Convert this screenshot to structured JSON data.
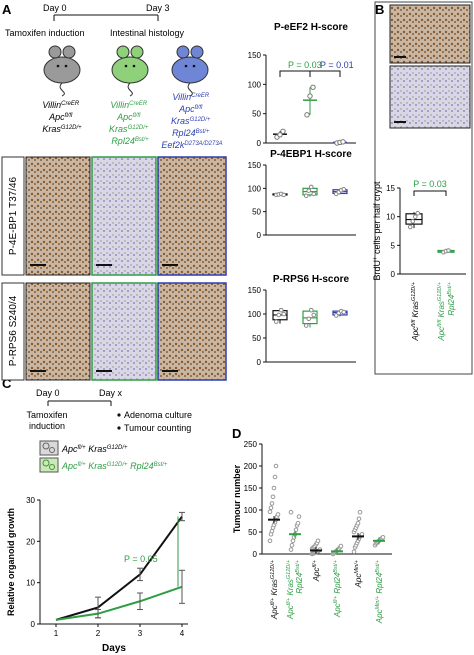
{
  "panel_labels": {
    "a": "A",
    "b": "B",
    "c": "C",
    "d": "D"
  },
  "timeline_a": {
    "day0": "Day 0",
    "day3": "Day 3",
    "left_label": "Tamoxifen induction",
    "right_label": "Intestinal histology"
  },
  "genotypes_a": {
    "g1": [
      "Villin",
      "CreER",
      "Apc",
      "fl/fl",
      "Kras",
      "G12D/+"
    ],
    "g2": [
      "Villin",
      "CreER",
      "Apc",
      "fl/fl",
      "Kras",
      "G12D/+",
      "Rpl24",
      "Bst/+"
    ],
    "g3": [
      "Villin",
      "CreER",
      "Apc",
      "fl/fl",
      "Kras",
      "G12D/+",
      "Rpl24",
      "Bst/+",
      "Eef2k",
      "D273A/D273A"
    ]
  },
  "stain_labels": {
    "row1": "P-4E-BP1 T37/46",
    "row2": "P-RPS6 S240/4"
  },
  "colors": {
    "black": "#111111",
    "green": "#2e9e44",
    "blue": "#2d3fb0",
    "light_green": "#8fd07a",
    "grey_pt": "#9a9a9a"
  },
  "chart_data": [
    {
      "type": "scatter",
      "title": "P-eEF2 H-score",
      "ylim": [
        0,
        150
      ],
      "yticks": [
        0,
        50,
        100,
        150
      ],
      "groups": [
        {
          "color": "black",
          "mean": 15,
          "points": [
            10,
            14,
            20
          ]
        },
        {
          "color": "green",
          "mean": 73,
          "points": [
            48,
            80,
            95
          ]
        },
        {
          "color": "blue",
          "mean": 1,
          "points": [
            0,
            1,
            2
          ]
        }
      ],
      "annotations": [
        {
          "text": "P = 0.03",
          "color": "green",
          "between": [
            0,
            1
          ]
        },
        {
          "text": "P = 0.01",
          "color": "blue",
          "between": [
            0,
            2
          ]
        }
      ]
    },
    {
      "type": "box",
      "title": "P-4EBP1 H-score",
      "ylim": [
        0,
        150
      ],
      "yticks": [
        0,
        50,
        100,
        150
      ],
      "groups": [
        {
          "color": "black",
          "q1": 86,
          "median": 87,
          "q3": 88,
          "min": 86,
          "max": 88,
          "points": [
            86,
            87,
            88,
            86
          ]
        },
        {
          "color": "green",
          "q1": 86,
          "median": 93,
          "q3": 100,
          "min": 82,
          "max": 106,
          "points": [
            84,
            95,
            103,
            88
          ]
        },
        {
          "color": "blue",
          "q1": 89,
          "median": 93,
          "q3": 97,
          "min": 87,
          "max": 99,
          "points": [
            88,
            92,
            96,
            98
          ]
        }
      ]
    },
    {
      "type": "box",
      "title": "P-RPS6 H-score",
      "ylim": [
        0,
        150
      ],
      "yticks": [
        0,
        50,
        100,
        150
      ],
      "groups": [
        {
          "color": "black",
          "q1": 88,
          "median": 98,
          "q3": 107,
          "min": 80,
          "max": 112,
          "points": [
            84,
            98,
            108,
            100
          ]
        },
        {
          "color": "green",
          "q1": 80,
          "median": 92,
          "q3": 106,
          "min": 72,
          "max": 112,
          "points": [
            76,
            90,
            108,
            98
          ]
        },
        {
          "color": "blue",
          "q1": 98,
          "median": 103,
          "q3": 106,
          "min": 95,
          "max": 108,
          "points": [
            97,
            102,
            106,
            104
          ]
        }
      ]
    },
    {
      "type": "box",
      "ylabel": [
        "BrdU",
        "+",
        " cells per half crypt"
      ],
      "ylim": [
        0,
        15
      ],
      "yticks": [
        0,
        5,
        10,
        15
      ],
      "annotation": {
        "text": "P = 0.03",
        "color": "green"
      },
      "groups": [
        {
          "color": "black",
          "q1": 8.7,
          "median": 9.5,
          "q3": 10.5,
          "min": 8.0,
          "max": 10.8,
          "points": [
            8.2,
            9.2,
            10.0,
            10.6
          ]
        },
        {
          "color": "green",
          "q1": 3.8,
          "median": 4.0,
          "q3": 4.1,
          "min": 3.7,
          "max": 4.2,
          "points": [
            3.8,
            4.0,
            4.1
          ]
        }
      ],
      "xlabels": [
        [
          "Apc",
          "fl/fl",
          " Kras",
          "G12D/+"
        ],
        [
          "Apc",
          "fl/fl",
          " Kras",
          "G12D/+",
          " Rpl24",
          "Bst/+"
        ]
      ]
    },
    {
      "type": "line",
      "xlabel": "Days",
      "ylabel": "Relative organoid growth",
      "xlim": [
        1,
        4
      ],
      "ylim": [
        0,
        30
      ],
      "x": [
        1,
        2,
        3,
        4
      ],
      "yticks": [
        0,
        10,
        20,
        30
      ],
      "series": [
        {
          "color": "black",
          "values": [
            1,
            4,
            12,
            26
          ],
          "err": [
            0,
            2.5,
            1.5,
            1
          ]
        },
        {
          "color": "green",
          "values": [
            1,
            2.5,
            5.5,
            9
          ],
          "err": [
            0,
            1,
            2,
            4
          ]
        }
      ],
      "annotation": {
        "text": "P = 0.05",
        "color": "green"
      }
    },
    {
      "type": "scatter",
      "ylabel": "Tumour number",
      "ylim": [
        0,
        250
      ],
      "yticks": [
        0,
        50,
        100,
        150,
        200,
        250
      ],
      "groups": [
        {
          "color": "black",
          "mean": 78,
          "points": [
            30,
            45,
            52,
            60,
            66,
            72,
            78,
            85,
            90,
            96,
            105,
            115,
            130,
            150,
            175,
            200
          ]
        },
        {
          "color": "green",
          "mean": 45,
          "points": [
            10,
            20,
            30,
            38,
            45,
            55,
            65,
            70,
            85,
            95
          ]
        },
        {
          "color": "black",
          "mean": 8,
          "points": [
            0,
            1,
            2,
            3,
            4,
            5,
            6,
            8,
            10,
            12,
            14,
            16,
            18,
            22,
            25,
            30
          ]
        },
        {
          "color": "green",
          "mean": 6,
          "points": [
            0,
            2,
            4,
            6,
            8,
            10,
            12,
            15,
            18
          ]
        },
        {
          "color": "black",
          "mean": 40,
          "points": [
            5,
            15,
            20,
            25,
            30,
            35,
            40,
            42,
            45,
            50,
            55,
            60,
            65,
            70,
            80,
            95
          ]
        },
        {
          "color": "green",
          "mean": 30,
          "points": [
            20,
            24,
            26,
            28,
            30,
            32,
            34,
            36,
            38
          ]
        }
      ],
      "xlabels": [
        [
          "Apc",
          "fl/+",
          " Kras",
          "G12D/+"
        ],
        [
          "Apc",
          "fl/+",
          " Kras",
          "G12D/+",
          " Rpl24",
          "Bst/+"
        ],
        [
          "Apc",
          "fl/+"
        ],
        [
          "Apc",
          "fl/+",
          " Rpl24",
          "Bst/+"
        ],
        [
          "Apc",
          "Min/+"
        ],
        [
          "Apc",
          "Min/+",
          " Rpl24",
          "Bst/+"
        ]
      ]
    }
  ],
  "timeline_c": {
    "day0": "Day 0",
    "dayx": "Day x",
    "left_label": [
      "Tamoxifen",
      "induction"
    ],
    "bullets": [
      "Adenoma culture",
      "Tumour counting"
    ]
  },
  "legend_c": [
    [
      "Apc",
      "fl/+",
      " Kras",
      "G12D/+"
    ],
    [
      "Apc",
      "fl/+",
      " Kras",
      "G12D/+",
      " Rpl24",
      "Bst/+"
    ]
  ]
}
